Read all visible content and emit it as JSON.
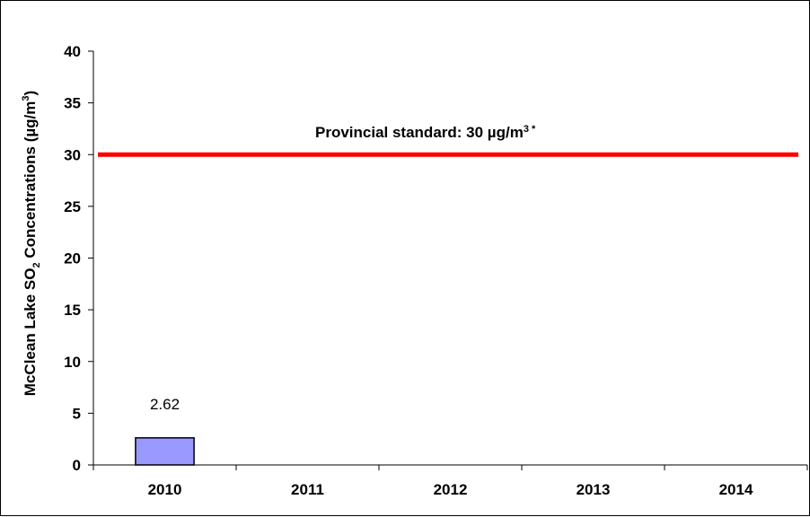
{
  "chart_data": {
    "type": "bar",
    "categories": [
      "2010",
      "2011",
      "2012",
      "2013",
      "2014"
    ],
    "values": [
      2.62,
      null,
      null,
      null,
      null
    ],
    "data_labels": [
      "2.62",
      "",
      "",
      "",
      ""
    ],
    "ylabel": {
      "prefix": "McClean Lake SO",
      "sub": "2",
      "middle": " Concentrations (µg/m",
      "sup": "3",
      "suffix": ")"
    },
    "ylim": [
      0,
      40
    ],
    "yticks": [
      "0",
      "5",
      "10",
      "15",
      "20",
      "25",
      "30",
      "35",
      "40"
    ],
    "grid": false,
    "bar_color": "#9999ff",
    "reference_line": {
      "value": 30,
      "color": "#ff0000",
      "label_text": "Provincial standard: 30 µg/m",
      "label_sup": "3",
      "label_mark": "*"
    }
  }
}
